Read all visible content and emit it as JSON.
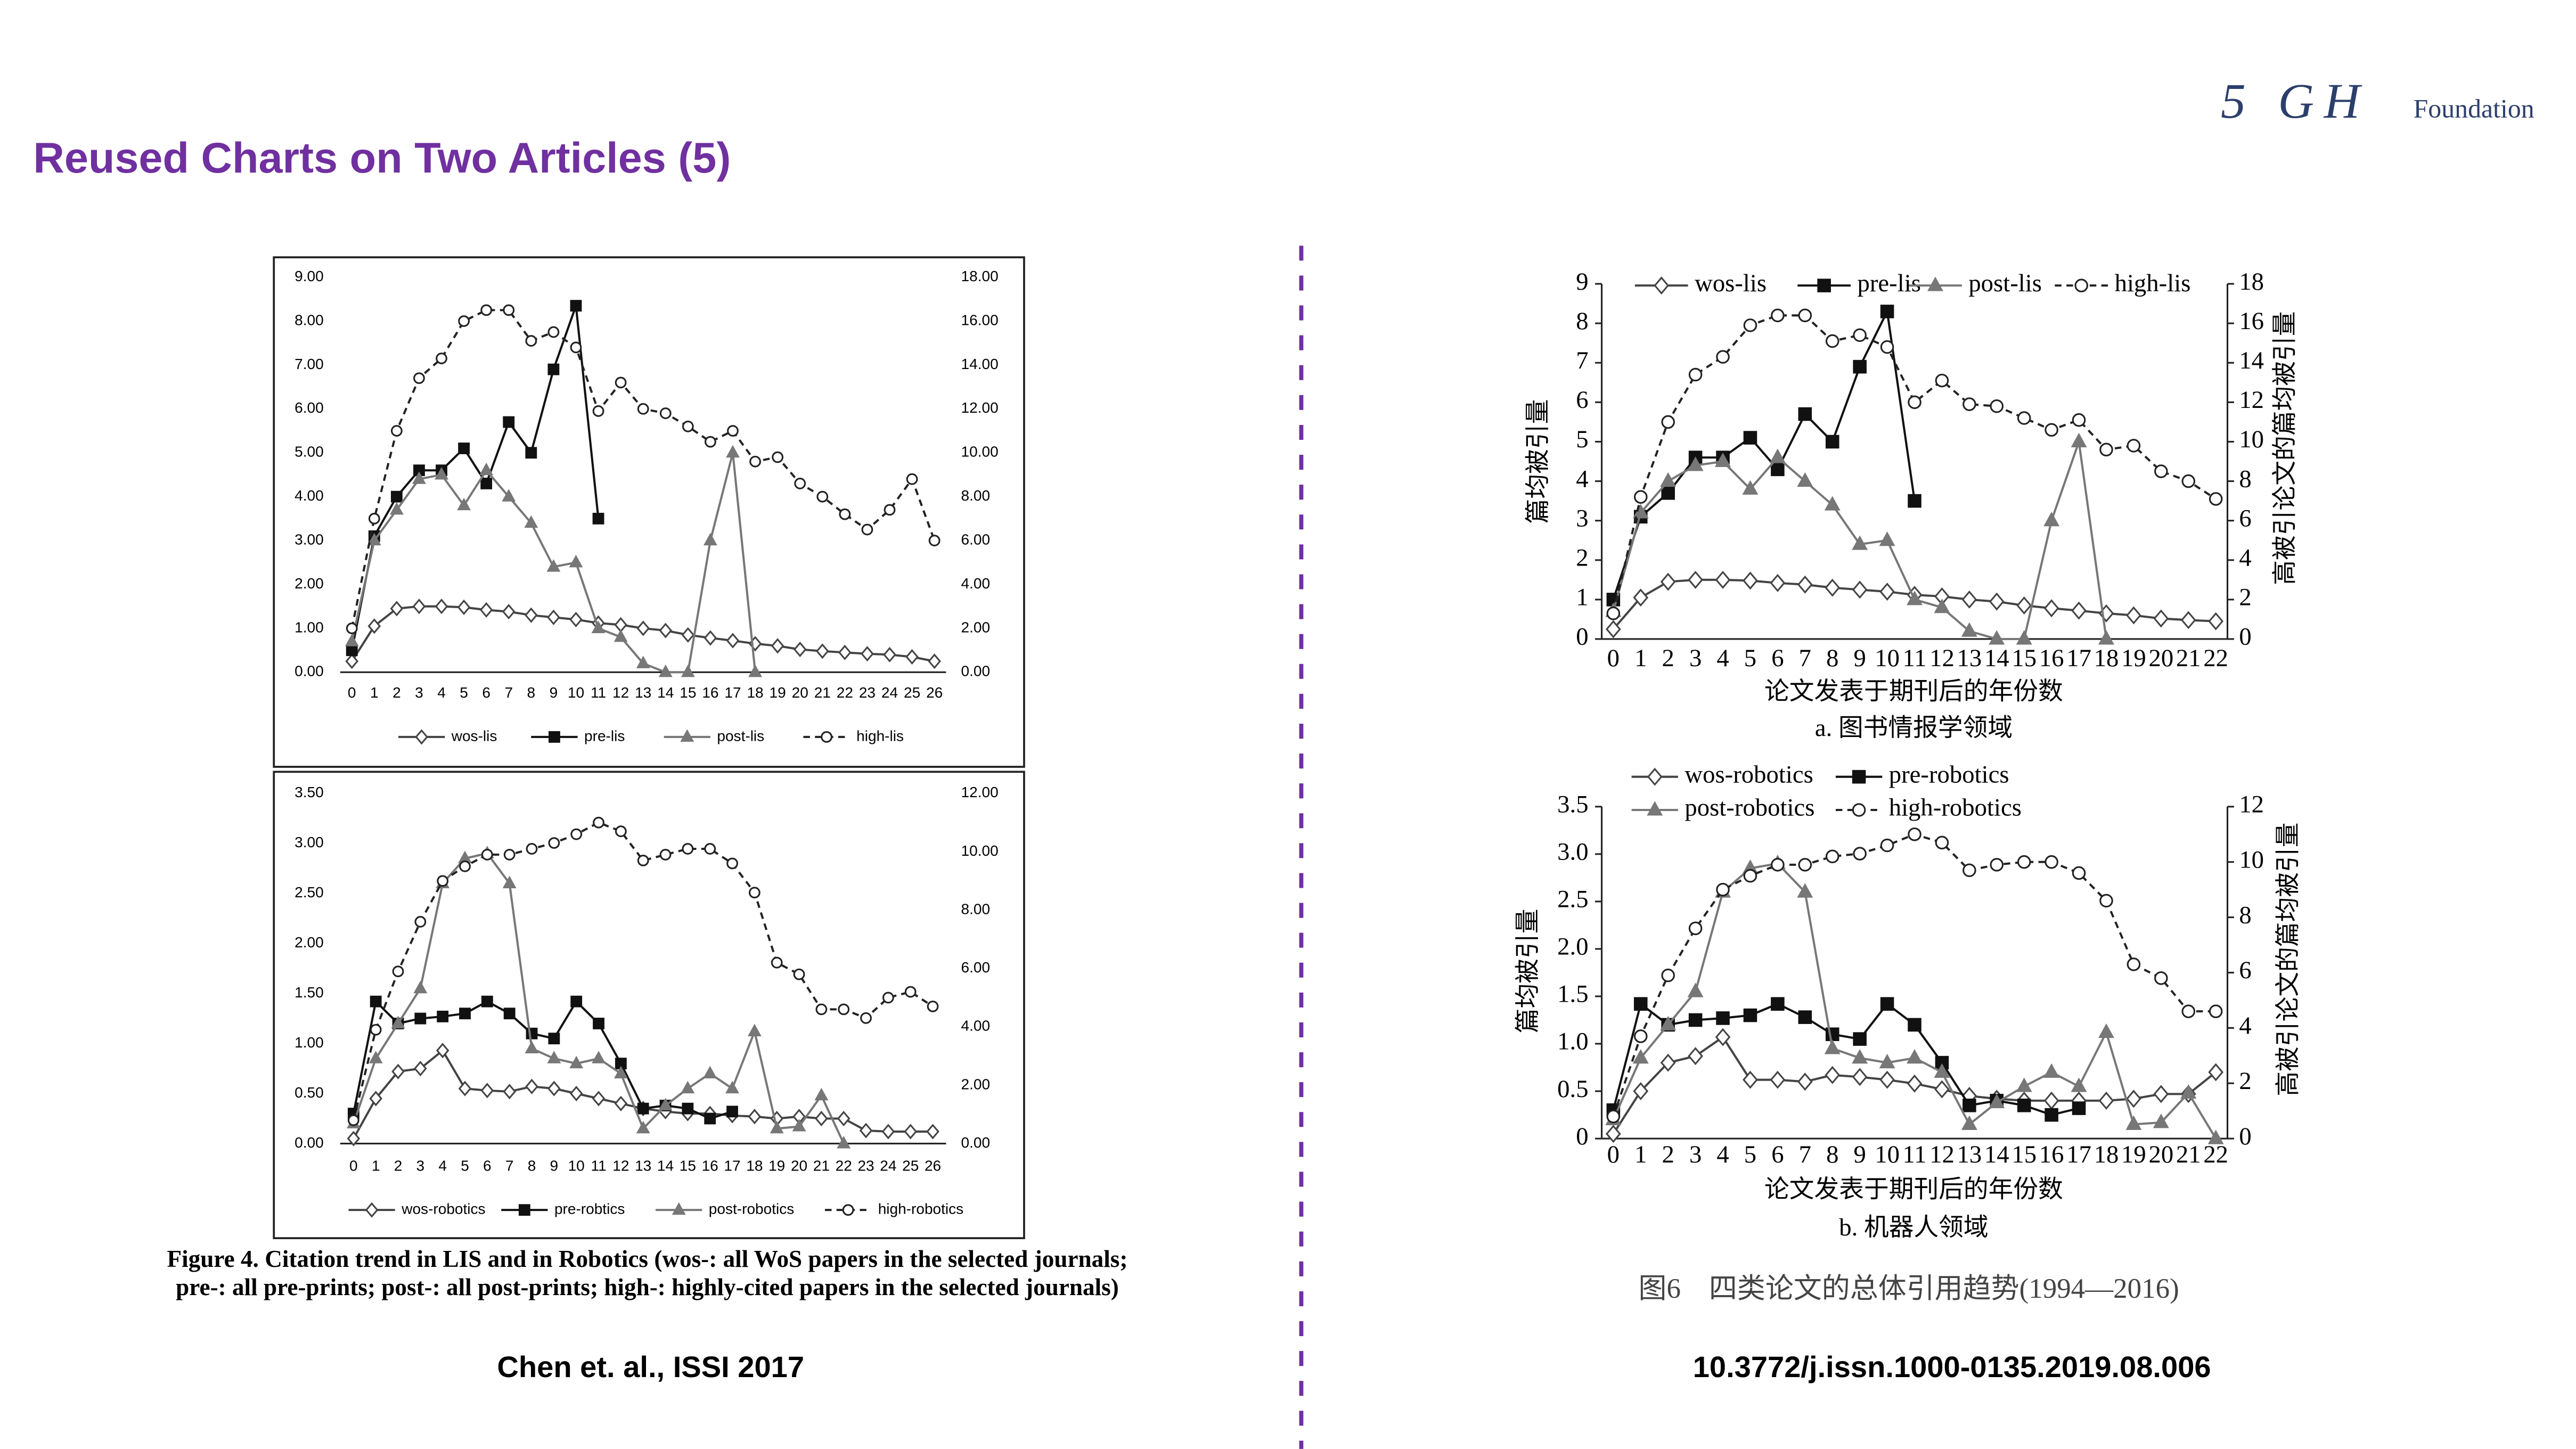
{
  "title": "Reused Charts on Two Articles (5)",
  "logo": {
    "mark": "5 GH",
    "text": "Foundation"
  },
  "left_caption": [
    "Figure 4. Citation trend in LIS and in Robotics (wos-: all WoS papers in the selected journals;",
    "pre-: all pre-prints; post-: all post-prints; high-: highly-cited papers in the selected journals)"
  ],
  "right_caption": "图6　四类论文的总体引用趋势(1994—2016)",
  "left_source": "Chen et. al., ISSI 2017",
  "right_source": "10.3772/j.issn.1000-0135.2019.08.006",
  "chart_data": [
    {
      "type": "line",
      "legend": "bottom",
      "categories": [
        "0",
        "1",
        "2",
        "3",
        "4",
        "5",
        "6",
        "7",
        "8",
        "9",
        "10",
        "11",
        "12",
        "13",
        "14",
        "15",
        "16",
        "17",
        "18",
        "19",
        "20",
        "21",
        "22",
        "23",
        "24",
        "25",
        "26"
      ],
      "ylim": [
        0,
        9
      ],
      "yticks": [
        {
          "value": 0,
          "label": "0.00"
        },
        {
          "value": 1,
          "label": "1.00"
        },
        {
          "value": 2,
          "label": "2.00"
        },
        {
          "value": 3,
          "label": "3.00"
        },
        {
          "value": 4,
          "label": "4.00"
        },
        {
          "value": 5,
          "label": "5.00"
        },
        {
          "value": 6,
          "label": "6.00"
        },
        {
          "value": 7,
          "label": "7.00"
        },
        {
          "value": 8,
          "label": "8.00"
        },
        {
          "value": 9,
          "label": "9.00"
        }
      ],
      "y2lim": [
        0,
        18
      ],
      "y2ticks": [
        {
          "value": 0,
          "label": "0.00"
        },
        {
          "value": 2,
          "label": "2.00"
        },
        {
          "value": 4,
          "label": "4.00"
        },
        {
          "value": 6,
          "label": "6.00"
        },
        {
          "value": 8,
          "label": "8.00"
        },
        {
          "value": 10,
          "label": "10.00"
        },
        {
          "value": 12,
          "label": "12.00"
        },
        {
          "value": 14,
          "label": "14.00"
        },
        {
          "value": 16,
          "label": "16.00"
        },
        {
          "value": 18,
          "label": "18.00"
        }
      ],
      "series": [
        {
          "name": "wos-lis",
          "color": "#444444",
          "marker": "diamond",
          "values": [
            0.25,
            1.05,
            1.45,
            1.5,
            1.5,
            1.48,
            1.42,
            1.38,
            1.3,
            1.25,
            1.2,
            1.12,
            1.08,
            1.0,
            0.95,
            0.85,
            0.78,
            0.72,
            0.65,
            0.6,
            0.52,
            0.48,
            0.45,
            0.42,
            0.4,
            0.35,
            0.25
          ]
        },
        {
          "name": "pre-lis",
          "color": "#111111",
          "marker": "square",
          "values": [
            0.5,
            3.1,
            4.0,
            4.6,
            4.6,
            5.1,
            4.3,
            5.7,
            5.0,
            6.9,
            8.35,
            3.5,
            null,
            null,
            null,
            null,
            null,
            null,
            null,
            null,
            null,
            null,
            null,
            null,
            null,
            null,
            null
          ]
        },
        {
          "name": "post-lis",
          "color": "#777777",
          "marker": "triangle",
          "values": [
            0.7,
            3.0,
            3.7,
            4.4,
            4.5,
            3.8,
            4.6,
            4.0,
            3.4,
            2.4,
            2.5,
            1.0,
            0.8,
            0.2,
            0,
            0,
            3.0,
            5.0,
            0,
            null,
            null,
            null,
            null,
            null,
            null,
            null,
            null
          ]
        },
        {
          "name": "high-lis",
          "color": "#222222",
          "marker": "circle",
          "dash": true,
          "axis": "y2",
          "values": [
            2,
            7,
            11,
            13.4,
            14.3,
            16,
            16.5,
            16.5,
            15.1,
            15.5,
            14.8,
            11.9,
            13.2,
            12,
            11.8,
            11.2,
            10.5,
            11,
            9.6,
            9.8,
            8.6,
            8,
            7.2,
            6.5,
            7.4,
            8.8,
            6
          ]
        }
      ]
    },
    {
      "type": "line",
      "legend": "bottom",
      "categories": [
        "0",
        "1",
        "2",
        "3",
        "4",
        "5",
        "6",
        "7",
        "8",
        "9",
        "10",
        "11",
        "12",
        "13",
        "14",
        "15",
        "16",
        "17",
        "18",
        "19",
        "20",
        "21",
        "22",
        "23",
        "24",
        "25",
        "26"
      ],
      "ylim": [
        0,
        3.5
      ],
      "yticks": [
        {
          "value": 0,
          "label": "0.00"
        },
        {
          "value": 0.5,
          "label": "0.50"
        },
        {
          "value": 1,
          "label": "1.00"
        },
        {
          "value": 1.5,
          "label": "1.50"
        },
        {
          "value": 2,
          "label": "2.00"
        },
        {
          "value": 2.5,
          "label": "2.50"
        },
        {
          "value": 3,
          "label": "3.00"
        },
        {
          "value": 3.5,
          "label": "3.50"
        }
      ],
      "y2lim": [
        0,
        12
      ],
      "y2ticks": [
        {
          "value": 0,
          "label": "0.00"
        },
        {
          "value": 2,
          "label": "2.00"
        },
        {
          "value": 4,
          "label": "4.00"
        },
        {
          "value": 6,
          "label": "6.00"
        },
        {
          "value": 8,
          "label": "8.00"
        },
        {
          "value": 10,
          "label": "10.00"
        },
        {
          "value": 12,
          "label": "12.00"
        }
      ],
      "series": [
        {
          "name": "wos-robotics",
          "color": "#444444",
          "marker": "diamond",
          "values": [
            0.05,
            0.45,
            0.72,
            0.75,
            0.93,
            0.55,
            0.53,
            0.52,
            0.57,
            0.55,
            0.5,
            0.45,
            0.4,
            0.35,
            0.32,
            0.3,
            0.3,
            0.28,
            0.27,
            0.25,
            0.27,
            0.25,
            0.25,
            0.13,
            0.12,
            0.12,
            0.12
          ]
        },
        {
          "name": "pre-robtics",
          "color": "#111111",
          "marker": "square",
          "values": [
            0.3,
            1.42,
            1.2,
            1.25,
            1.27,
            1.3,
            1.42,
            1.3,
            1.1,
            1.05,
            1.42,
            1.2,
            0.8,
            0.35,
            0.38,
            0.35,
            0.25,
            0.32,
            null,
            null,
            null,
            null,
            null,
            null,
            null,
            null,
            null
          ]
        },
        {
          "name": "post-robotics",
          "color": "#777777",
          "marker": "triangle",
          "values": [
            0.2,
            0.85,
            1.2,
            1.55,
            2.6,
            2.85,
            2.9,
            2.6,
            0.95,
            0.85,
            0.8,
            0.85,
            0.7,
            0.15,
            0.38,
            0.55,
            0.7,
            0.55,
            1.12,
            0.15,
            0.17,
            0.48,
            0,
            null,
            null,
            null,
            null
          ]
        },
        {
          "name": "high-robotics",
          "color": "#222222",
          "marker": "circle",
          "dash": true,
          "axis": "y2",
          "values": [
            0.8,
            3.9,
            5.9,
            7.6,
            9,
            9.5,
            9.9,
            9.9,
            10.1,
            10.3,
            10.6,
            11,
            10.7,
            9.7,
            9.9,
            10.1,
            10.1,
            9.6,
            8.6,
            6.2,
            5.8,
            4.6,
            4.6,
            4.3,
            5,
            5.2,
            4.7
          ]
        }
      ]
    },
    {
      "type": "line",
      "legend": "top",
      "ylabel": "篇均被引量",
      "y2label": "高被引论文的篇均被引量",
      "xlabel": "论文发表于期刊后的年份数",
      "subtitle": "a. 图书情报学领域",
      "categories": [
        "0",
        "1",
        "2",
        "3",
        "4",
        "5",
        "6",
        "7",
        "8",
        "9",
        "10",
        "11",
        "12",
        "13",
        "14",
        "15",
        "16",
        "17",
        "18",
        "19",
        "20",
        "21",
        "22"
      ],
      "ylim": [
        0,
        9
      ],
      "yticks": [
        0,
        1,
        2,
        3,
        4,
        5,
        6,
        7,
        8,
        9
      ],
      "y2lim": [
        0,
        18
      ],
      "y2ticks": [
        0,
        2,
        4,
        6,
        8,
        10,
        12,
        14,
        16,
        18
      ],
      "series": [
        {
          "name": "wos-lis",
          "color": "#444444",
          "marker": "diamond",
          "values": [
            0.25,
            1.05,
            1.45,
            1.5,
            1.5,
            1.48,
            1.42,
            1.38,
            1.3,
            1.25,
            1.2,
            1.12,
            1.08,
            1.0,
            0.95,
            0.85,
            0.78,
            0.72,
            0.65,
            0.6,
            0.52,
            0.48,
            0.45
          ]
        },
        {
          "name": "pre-lis",
          "color": "#111111",
          "marker": "square",
          "values": [
            1,
            3.1,
            3.7,
            4.6,
            4.6,
            5.1,
            4.3,
            5.7,
            5.0,
            6.9,
            8.3,
            3.5,
            null,
            null,
            null,
            null,
            null,
            null,
            null,
            null,
            null,
            null,
            null
          ]
        },
        {
          "name": "post-lis",
          "color": "#777777",
          "marker": "triangle",
          "values": [
            0.7,
            3.2,
            4.0,
            4.4,
            4.5,
            3.8,
            4.6,
            4.0,
            3.4,
            2.4,
            2.5,
            1.0,
            0.8,
            0.2,
            0,
            0,
            3.0,
            5.0,
            0,
            null,
            null,
            null,
            null
          ]
        },
        {
          "name": "high-lis",
          "color": "#222222",
          "marker": "circle",
          "dash": true,
          "axis": "y2",
          "values": [
            1.3,
            7.2,
            11,
            13.4,
            14.3,
            15.9,
            16.4,
            16.4,
            15.1,
            15.4,
            14.8,
            12,
            13.1,
            11.9,
            11.8,
            11.2,
            10.6,
            11.1,
            9.6,
            9.8,
            8.5,
            8,
            7.1
          ]
        }
      ]
    },
    {
      "type": "line",
      "legend": "top",
      "ylabel": "篇均被引量",
      "y2label": "高被引论文的篇均被引量",
      "xlabel": "论文发表于期刊后的年份数",
      "subtitle": "b. 机器人领域",
      "categories": [
        "0",
        "1",
        "2",
        "3",
        "4",
        "5",
        "6",
        "7",
        "8",
        "9",
        "10",
        "11",
        "12",
        "13",
        "14",
        "15",
        "16",
        "17",
        "18",
        "19",
        "20",
        "21",
        "22"
      ],
      "ylim": [
        0,
        3.5
      ],
      "yticks": [
        0,
        0.5,
        {
          "value": 1,
          "label": "1.0"
        },
        1.5,
        {
          "value": 2,
          "label": "2.0"
        },
        2.5,
        {
          "value": 3,
          "label": "3.0"
        },
        3.5
      ],
      "y2lim": [
        0,
        12
      ],
      "y2ticks": [
        0,
        2,
        4,
        6,
        8,
        10,
        12
      ],
      "series": [
        {
          "name": "wos-robotics",
          "color": "#444444",
          "marker": "diamond",
          "values": [
            0.05,
            0.5,
            0.8,
            0.87,
            1.07,
            0.62,
            0.62,
            0.6,
            0.67,
            0.65,
            0.62,
            0.58,
            0.52,
            0.45,
            0.42,
            0.4,
            0.4,
            0.4,
            0.4,
            0.42,
            0.47,
            0.47,
            0.7
          ]
        },
        {
          "name": "pre-robotics",
          "color": "#111111",
          "marker": "square",
          "values": [
            0.3,
            1.42,
            1.2,
            1.25,
            1.27,
            1.3,
            1.42,
            1.28,
            1.1,
            1.05,
            1.42,
            1.2,
            0.8,
            0.35,
            0.4,
            0.35,
            0.25,
            0.32,
            null,
            null,
            null,
            null,
            null
          ]
        },
        {
          "name": "post-robotics",
          "color": "#777777",
          "marker": "triangle",
          "values": [
            0.2,
            0.85,
            1.2,
            1.55,
            2.6,
            2.85,
            2.9,
            2.6,
            0.95,
            0.85,
            0.8,
            0.85,
            0.7,
            0.15,
            0.38,
            0.55,
            0.7,
            0.55,
            1.12,
            0.15,
            0.17,
            0.48,
            0
          ]
        },
        {
          "name": "high-robotics",
          "color": "#222222",
          "marker": "circle",
          "dash": true,
          "axis": "y2",
          "values": [
            0.8,
            3.7,
            5.9,
            7.6,
            9,
            9.5,
            9.9,
            9.9,
            10.2,
            10.3,
            10.6,
            11,
            10.7,
            9.7,
            9.9,
            10,
            10,
            9.6,
            8.6,
            6.3,
            5.8,
            4.6,
            4.6
          ]
        }
      ]
    }
  ]
}
